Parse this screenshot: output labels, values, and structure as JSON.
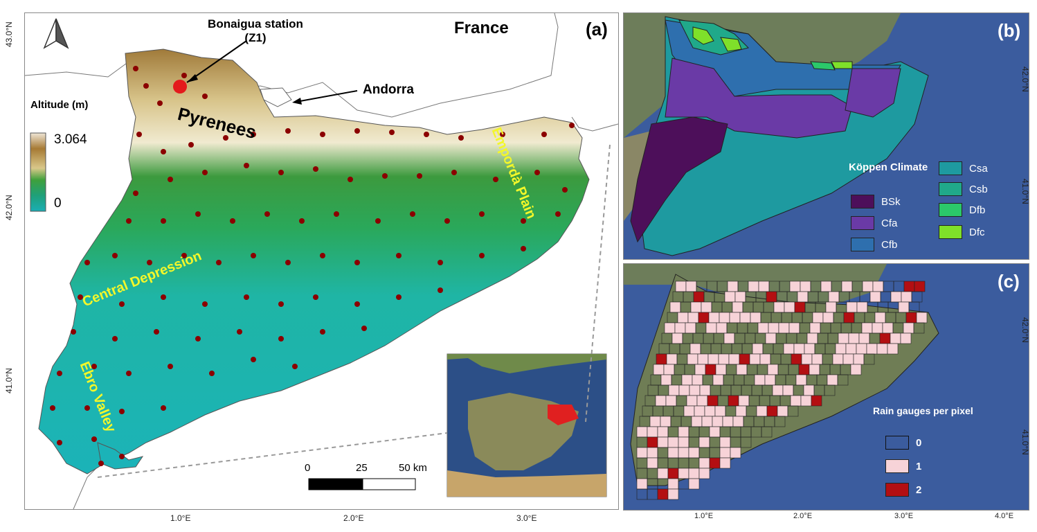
{
  "panel_a": {
    "letter": "(a)",
    "station_label_1": "Bonaigua station",
    "station_label_2": "(Z1)",
    "france": "France",
    "andorra": "Andorra",
    "pyrenees": "Pyrenees",
    "altitude_title": "Altitude (m)",
    "altitude_max": "3.064",
    "altitude_min": "0",
    "regions": [
      "Central Depression",
      "Empordà Plain",
      "Ebro Valley"
    ],
    "scale": {
      "ticks": [
        "0",
        "25",
        "50 km"
      ]
    },
    "x_ticks": [
      "1.0°E",
      "2.0°E",
      "3.0°E"
    ],
    "y_ticks": [
      "43.0°N",
      "42.0°N",
      "41.0°N"
    ],
    "colors": {
      "station": "#e41a1c",
      "gauge": "#8b0000"
    }
  },
  "panel_b": {
    "letter": "(b)",
    "legend_title": "Köppen Climate",
    "classes": [
      {
        "name": "BSk",
        "color": "#4d0f5a"
      },
      {
        "name": "Cfa",
        "color": "#6a3aa6"
      },
      {
        "name": "Cfb",
        "color": "#2e6fae"
      },
      {
        "name": "Csa",
        "color": "#1e9aa0"
      },
      {
        "name": "Csb",
        "color": "#20a98a"
      },
      {
        "name": "Dfb",
        "color": "#2bc86a"
      },
      {
        "name": "Dfc",
        "color": "#7fe02a"
      }
    ],
    "y_ticks": [
      "42.0°N",
      "41.0°N"
    ]
  },
  "panel_c": {
    "letter": "(c)",
    "legend_title": "Rain gauges per pixel",
    "classes": [
      {
        "name": "0",
        "color": "transparent"
      },
      {
        "name": "1",
        "color": "#f7d3d8"
      },
      {
        "name": "2",
        "color": "#b30f12"
      }
    ],
    "x_ticks": [
      "1.0°E",
      "2.0°E",
      "3.0°E",
      "4.0°E"
    ],
    "y_ticks": [
      "42.0°N",
      "41.0°N"
    ]
  }
}
